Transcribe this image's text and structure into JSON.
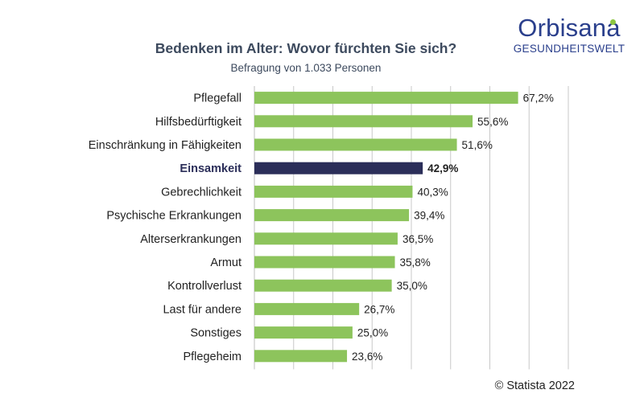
{
  "header": {
    "title": "Bedenken im Alter: Wovor fürchten Sie sich?",
    "subtitle": "Befragung von 1.033 Personen"
  },
  "logo": {
    "name": "Orbisana",
    "tagline": "GESUNDHEITSWELT"
  },
  "source": "© Statista 2022",
  "colors": {
    "bar": "#8dc45c",
    "highlight": "#2b2e59",
    "grid": "#c8c8c8",
    "text": "#222222"
  },
  "chart_data": {
    "type": "bar",
    "orientation": "horizontal",
    "title": "Bedenken im Alter: Wovor fürchten Sie sich?",
    "subtitle": "Befragung von 1.033 Personen",
    "categories": [
      "Pflegefall",
      "Hilfsbedürftigkeit",
      "Einschränkung in Fähigkeiten",
      "Einsamkeit",
      "Gebrechlichkeit",
      "Psychische Erkrankungen",
      "Alterserkrankungen",
      "Armut",
      "Kontrollverlust",
      "Last für andere",
      "Sonstiges",
      "Pflegeheim"
    ],
    "values": [
      67.2,
      55.6,
      51.6,
      42.9,
      40.3,
      39.4,
      36.5,
      35.8,
      35.0,
      26.7,
      25.0,
      23.6
    ],
    "value_labels": [
      "67,2%",
      "55,6%",
      "51,6%",
      "42,9%",
      "40,3%",
      "39,4%",
      "36,5%",
      "35,8%",
      "35,0%",
      "26,7%",
      "25,0%",
      "23,6%"
    ],
    "highlighted": [
      "Einsamkeit"
    ],
    "xlim": [
      0,
      80
    ],
    "grid": true,
    "legend": "none"
  }
}
